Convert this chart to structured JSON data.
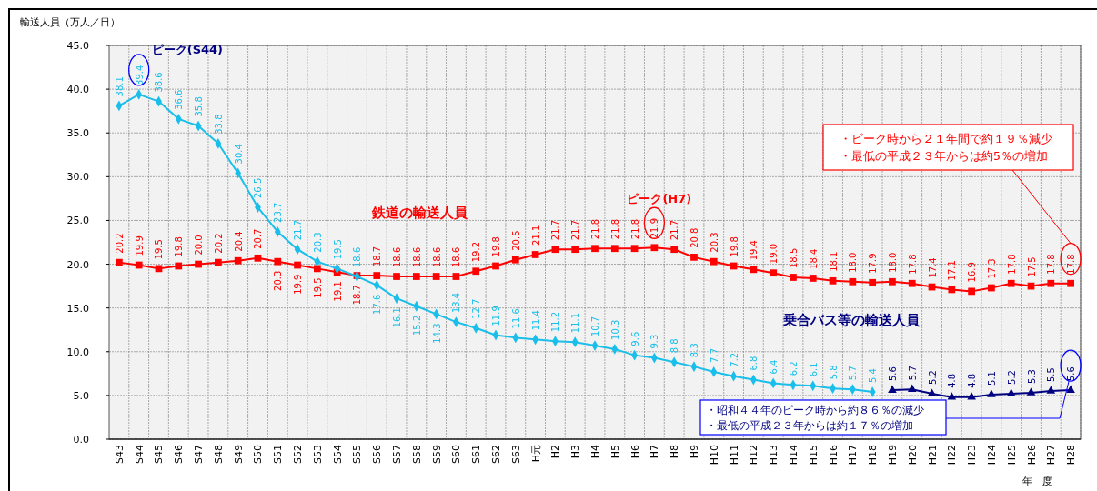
{
  "chart_data": {
    "type": "line",
    "ylabel": "輸送人員（万人／日）",
    "xlabel": "年　度",
    "categories": [
      "S43",
      "S44",
      "S45",
      "S46",
      "S47",
      "S48",
      "S49",
      "S50",
      "S51",
      "S52",
      "S53",
      "S54",
      "S55",
      "S56",
      "S57",
      "S58",
      "S59",
      "S60",
      "S61",
      "S62",
      "S63",
      "H元",
      "H2",
      "H3",
      "H4",
      "H5",
      "H6",
      "H7",
      "H8",
      "H9",
      "H10",
      "H11",
      "H12",
      "H13",
      "H14",
      "H15",
      "H16",
      "H17",
      "H18",
      "H19",
      "H20",
      "H21",
      "H22",
      "H23",
      "H24",
      "H25",
      "H26",
      "H27",
      "H28"
    ],
    "series": [
      {
        "name": "鉄道の輸送人員",
        "color": "#ff0000",
        "marker": "square",
        "value_labels": [
          "20.2",
          "19.9",
          "19.5",
          "19.8",
          "20.0",
          "20.2",
          "20.4",
          "20.7",
          "20.3",
          "19.9",
          "19.5",
          "19.1",
          "18.7",
          "18.7",
          "18.6",
          "18.6",
          "18.6",
          "18.6",
          "19.2",
          "19.8",
          "20.5",
          "21.1",
          "21.7",
          "21.7",
          "21.8",
          "21.8",
          "21.8",
          "21.9",
          "21.7",
          "20.8",
          "20.3",
          "19.8",
          "19.4",
          "19.0",
          "18.5",
          "18.4",
          "18.1",
          "18.0",
          "17.9",
          "18.0",
          "17.8",
          "17.4",
          "17.1",
          "16.9",
          "17.3",
          "17.8",
          "17.5",
          "17.8",
          "17.8"
        ],
        "values": [
          20.2,
          19.9,
          19.5,
          19.8,
          20.0,
          20.2,
          20.4,
          20.7,
          20.3,
          19.9,
          19.5,
          19.1,
          18.7,
          18.7,
          18.6,
          18.6,
          18.6,
          18.6,
          19.2,
          19.8,
          20.5,
          21.1,
          21.7,
          21.7,
          21.8,
          21.8,
          21.8,
          21.9,
          21.7,
          20.8,
          20.3,
          19.8,
          19.4,
          19.0,
          18.5,
          18.4,
          18.1,
          18.0,
          17.9,
          18.0,
          17.8,
          17.4,
          17.1,
          16.9,
          17.3,
          17.8,
          17.5,
          17.8,
          17.8
        ]
      },
      {
        "color": "#19bfea",
        "marker": "diamond",
        "value_labels": [
          "38.1",
          "39.4",
          "38.6",
          "36.6",
          "35.8",
          "33.8",
          "30.4",
          "26.5",
          "23.7",
          "21.7",
          "20.3",
          "19.5",
          "18.6",
          "17.6",
          "16.1",
          "15.2",
          "14.3",
          "13.4",
          "12.7",
          "11.9",
          "11.6",
          "11.4",
          "11.2",
          "11.1",
          "10.7",
          "10.3",
          "9.6",
          "9.3",
          "8.8",
          "8.3",
          "7.7",
          "7.2",
          "6.8",
          "6.4",
          "6.2",
          "6.1",
          "5.8",
          "5.7",
          "5.4",
          null,
          null,
          null,
          null,
          null,
          null,
          null,
          null,
          null,
          null
        ],
        "values": [
          38.1,
          39.4,
          38.6,
          36.6,
          35.8,
          33.8,
          30.4,
          26.5,
          23.7,
          21.7,
          20.3,
          19.5,
          18.6,
          17.6,
          16.1,
          15.2,
          14.3,
          13.4,
          12.7,
          11.9,
          11.6,
          11.4,
          11.2,
          11.1,
          10.7,
          10.3,
          9.6,
          9.3,
          8.8,
          8.3,
          7.7,
          7.2,
          6.8,
          6.4,
          6.2,
          6.1,
          5.8,
          5.7,
          5.4,
          null,
          null,
          null,
          null,
          null,
          null,
          null,
          null,
          null,
          null
        ]
      },
      {
        "name": "乗合バス等の輸送人員",
        "color": "#000080",
        "marker": "triangle",
        "value_labels": [
          null,
          null,
          null,
          null,
          null,
          null,
          null,
          null,
          null,
          null,
          null,
          null,
          null,
          null,
          null,
          null,
          null,
          null,
          null,
          null,
          null,
          null,
          null,
          null,
          null,
          null,
          null,
          null,
          null,
          null,
          null,
          null,
          null,
          null,
          null,
          null,
          null,
          null,
          null,
          "5.6",
          "5.7",
          "5.2",
          "4.8",
          "4.8",
          "5.1",
          "5.2",
          "5.3",
          "5.5",
          "5.6"
        ],
        "values": [
          null,
          null,
          null,
          null,
          null,
          null,
          null,
          null,
          null,
          null,
          null,
          null,
          null,
          null,
          null,
          null,
          null,
          null,
          null,
          null,
          null,
          null,
          null,
          null,
          null,
          null,
          null,
          null,
          null,
          null,
          null,
          null,
          null,
          null,
          null,
          null,
          null,
          null,
          null,
          5.6,
          5.7,
          5.2,
          4.8,
          4.8,
          5.1,
          5.2,
          5.3,
          5.5,
          5.6
        ]
      }
    ],
    "ylim": [
      0,
      45
    ],
    "yticks": [
      {
        "value": 0,
        "label": "0.0"
      },
      {
        "value": 5,
        "label": "5.0"
      },
      {
        "value": 10,
        "label": "10.0"
      },
      {
        "value": 15,
        "label": "15.0"
      },
      {
        "value": 20,
        "label": "20.0"
      },
      {
        "value": 25,
        "label": "25.0"
      },
      {
        "value": 30,
        "label": "30.0"
      },
      {
        "value": 35,
        "label": "35.0"
      },
      {
        "value": 40,
        "label": "40.0"
      },
      {
        "value": 45,
        "label": "45.0"
      }
    ],
    "grid": true,
    "line_style": "solid",
    "annotations": [
      "ピーク(S44)",
      "ピーク(H7)",
      "・ピーク時から２１年間で約１９％減少",
      "・最低の平成２３年からは約5％の増加",
      "・昭和４４年のピーク時から約８６％の減少",
      "・最低の平成２３年からは約１７％の増加"
    ]
  }
}
